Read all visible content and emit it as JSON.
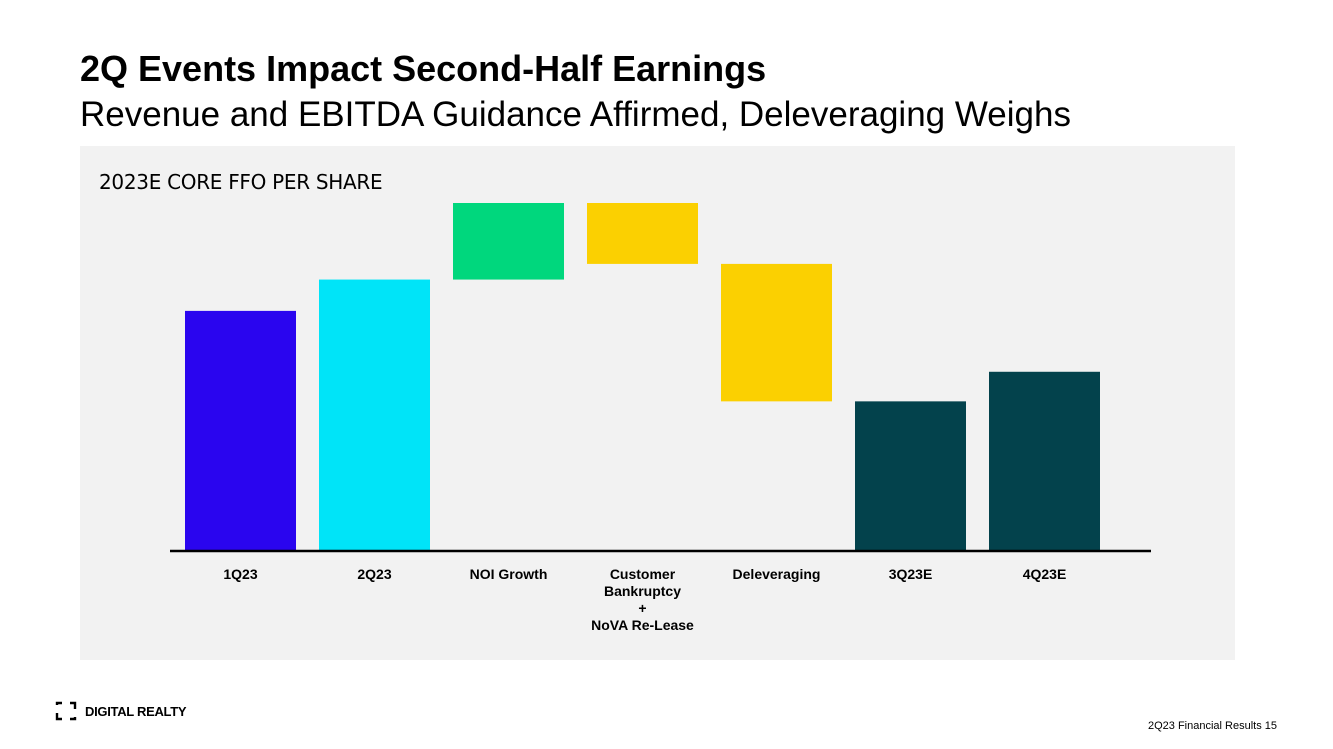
{
  "slide": {
    "title": "2Q Events Impact Second-Half Earnings",
    "subtitle": "Revenue and EBITDA Guidance Affirmed, Deleveraging Weighs",
    "logo_text": "DIGITAL REALTY",
    "footer": "2Q23 Financial Results 15"
  },
  "colors": {
    "panel": "#f2f2f2",
    "q1": "#2a05ef",
    "q2": "#00e4f8",
    "growth": "#00d77d",
    "negative": "#fbd001",
    "forecast": "#03424c",
    "axis": "#000000"
  },
  "chart_data": {
    "type": "bar",
    "subtype": "waterfall",
    "title": "2023E CORE FFO PER SHARE",
    "xlabel": "",
    "ylabel": "",
    "y_axis_shown": false,
    "grid": false,
    "legend": "none",
    "ylim": [
      0,
      100
    ],
    "categories": [
      [
        "1Q23"
      ],
      [
        "2Q23"
      ],
      [
        "NOI Growth"
      ],
      [
        "Customer",
        "Bankruptcy",
        "+",
        "NoVA Re-Lease"
      ],
      [
        "Deleveraging"
      ],
      [
        "3Q23E"
      ],
      [
        "4Q23E"
      ]
    ],
    "bars": [
      {
        "label": "1Q23",
        "start": 0,
        "end": 69,
        "color_key": "q1"
      },
      {
        "label": "2Q23",
        "start": 0,
        "end": 78,
        "color_key": "q2"
      },
      {
        "label": "NOI Growth",
        "start": 78,
        "end": 100,
        "color_key": "growth"
      },
      {
        "label": "Customer Bankruptcy + NoVA Re-Lease",
        "start": 100,
        "end": 82.5,
        "color_key": "negative"
      },
      {
        "label": "Deleveraging",
        "start": 82.5,
        "end": 43,
        "color_key": "negative"
      },
      {
        "label": "3Q23E",
        "start": 0,
        "end": 43,
        "color_key": "forecast"
      },
      {
        "label": "4Q23E",
        "start": 0,
        "end": 51.5,
        "color_key": "forecast"
      }
    ],
    "note": "No numeric axis or data labels shown; values are relative estimates (0-100 scale) read from bar heights."
  }
}
